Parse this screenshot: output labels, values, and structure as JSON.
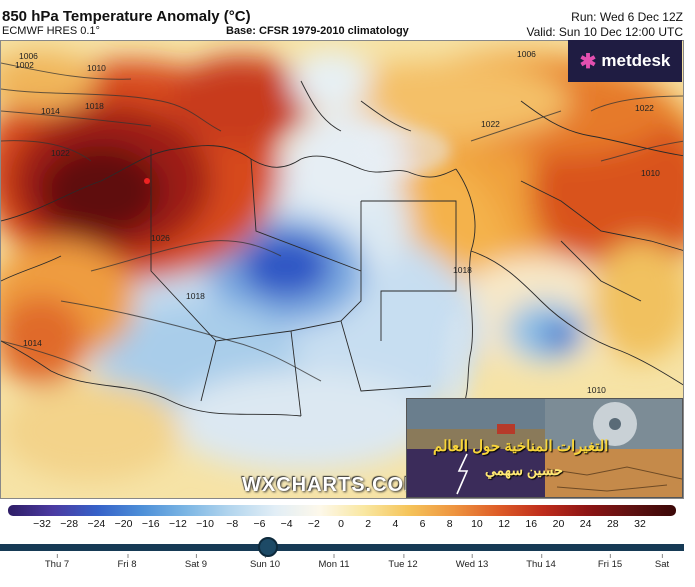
{
  "header": {
    "title": "850 hPa Temperature Anomaly (°C)",
    "model": "ECMWF HRES 0.1°",
    "base": "Base: CFSR 1979-2010 climatology",
    "run": "Run: Wed 6 Dec 12Z",
    "valid": "Valid: Sun 10 Dec 12:00 UTC"
  },
  "logo": {
    "text": "metdesk"
  },
  "watermark": "WXCHARTS.COM",
  "overlay": {
    "line1": "التغيرات المناخية حول العالم",
    "line2": "حسين سهمي"
  },
  "isobars": [
    "1002",
    "1006",
    "1010",
    "1014",
    "1018",
    "1022",
    "1026",
    "1018",
    "1014",
    "1022",
    "1018",
    "1010",
    "1006",
    "1022",
    "1010"
  ],
  "colorbar": {
    "ticks": [
      "−32",
      "−28",
      "−24",
      "−20",
      "−16",
      "−12",
      "−10",
      "−8",
      "−6",
      "−4",
      "−2",
      "0",
      "2",
      "4",
      "6",
      "8",
      "10",
      "12",
      "16",
      "20",
      "24",
      "28",
      "32"
    ]
  },
  "timeline": {
    "days": [
      "Thu 7",
      "Fri 8",
      "Sat 9",
      "Sun 10",
      "Mon 11",
      "Tue 12",
      "Wed 13",
      "Thu 14",
      "Fri 15",
      "Sat"
    ],
    "selected_index": 3
  },
  "colors": {
    "cold_deep": "#1b3fb0",
    "cold": "#8bbde6",
    "neutral": "#f4efe2",
    "warm": "#f2a33f",
    "hot": "#c22a17",
    "very_hot": "#5a0c0c",
    "logo_bg": "#1f1c42",
    "logo_accent": "#e34fb0",
    "timeline": "#163a55"
  }
}
